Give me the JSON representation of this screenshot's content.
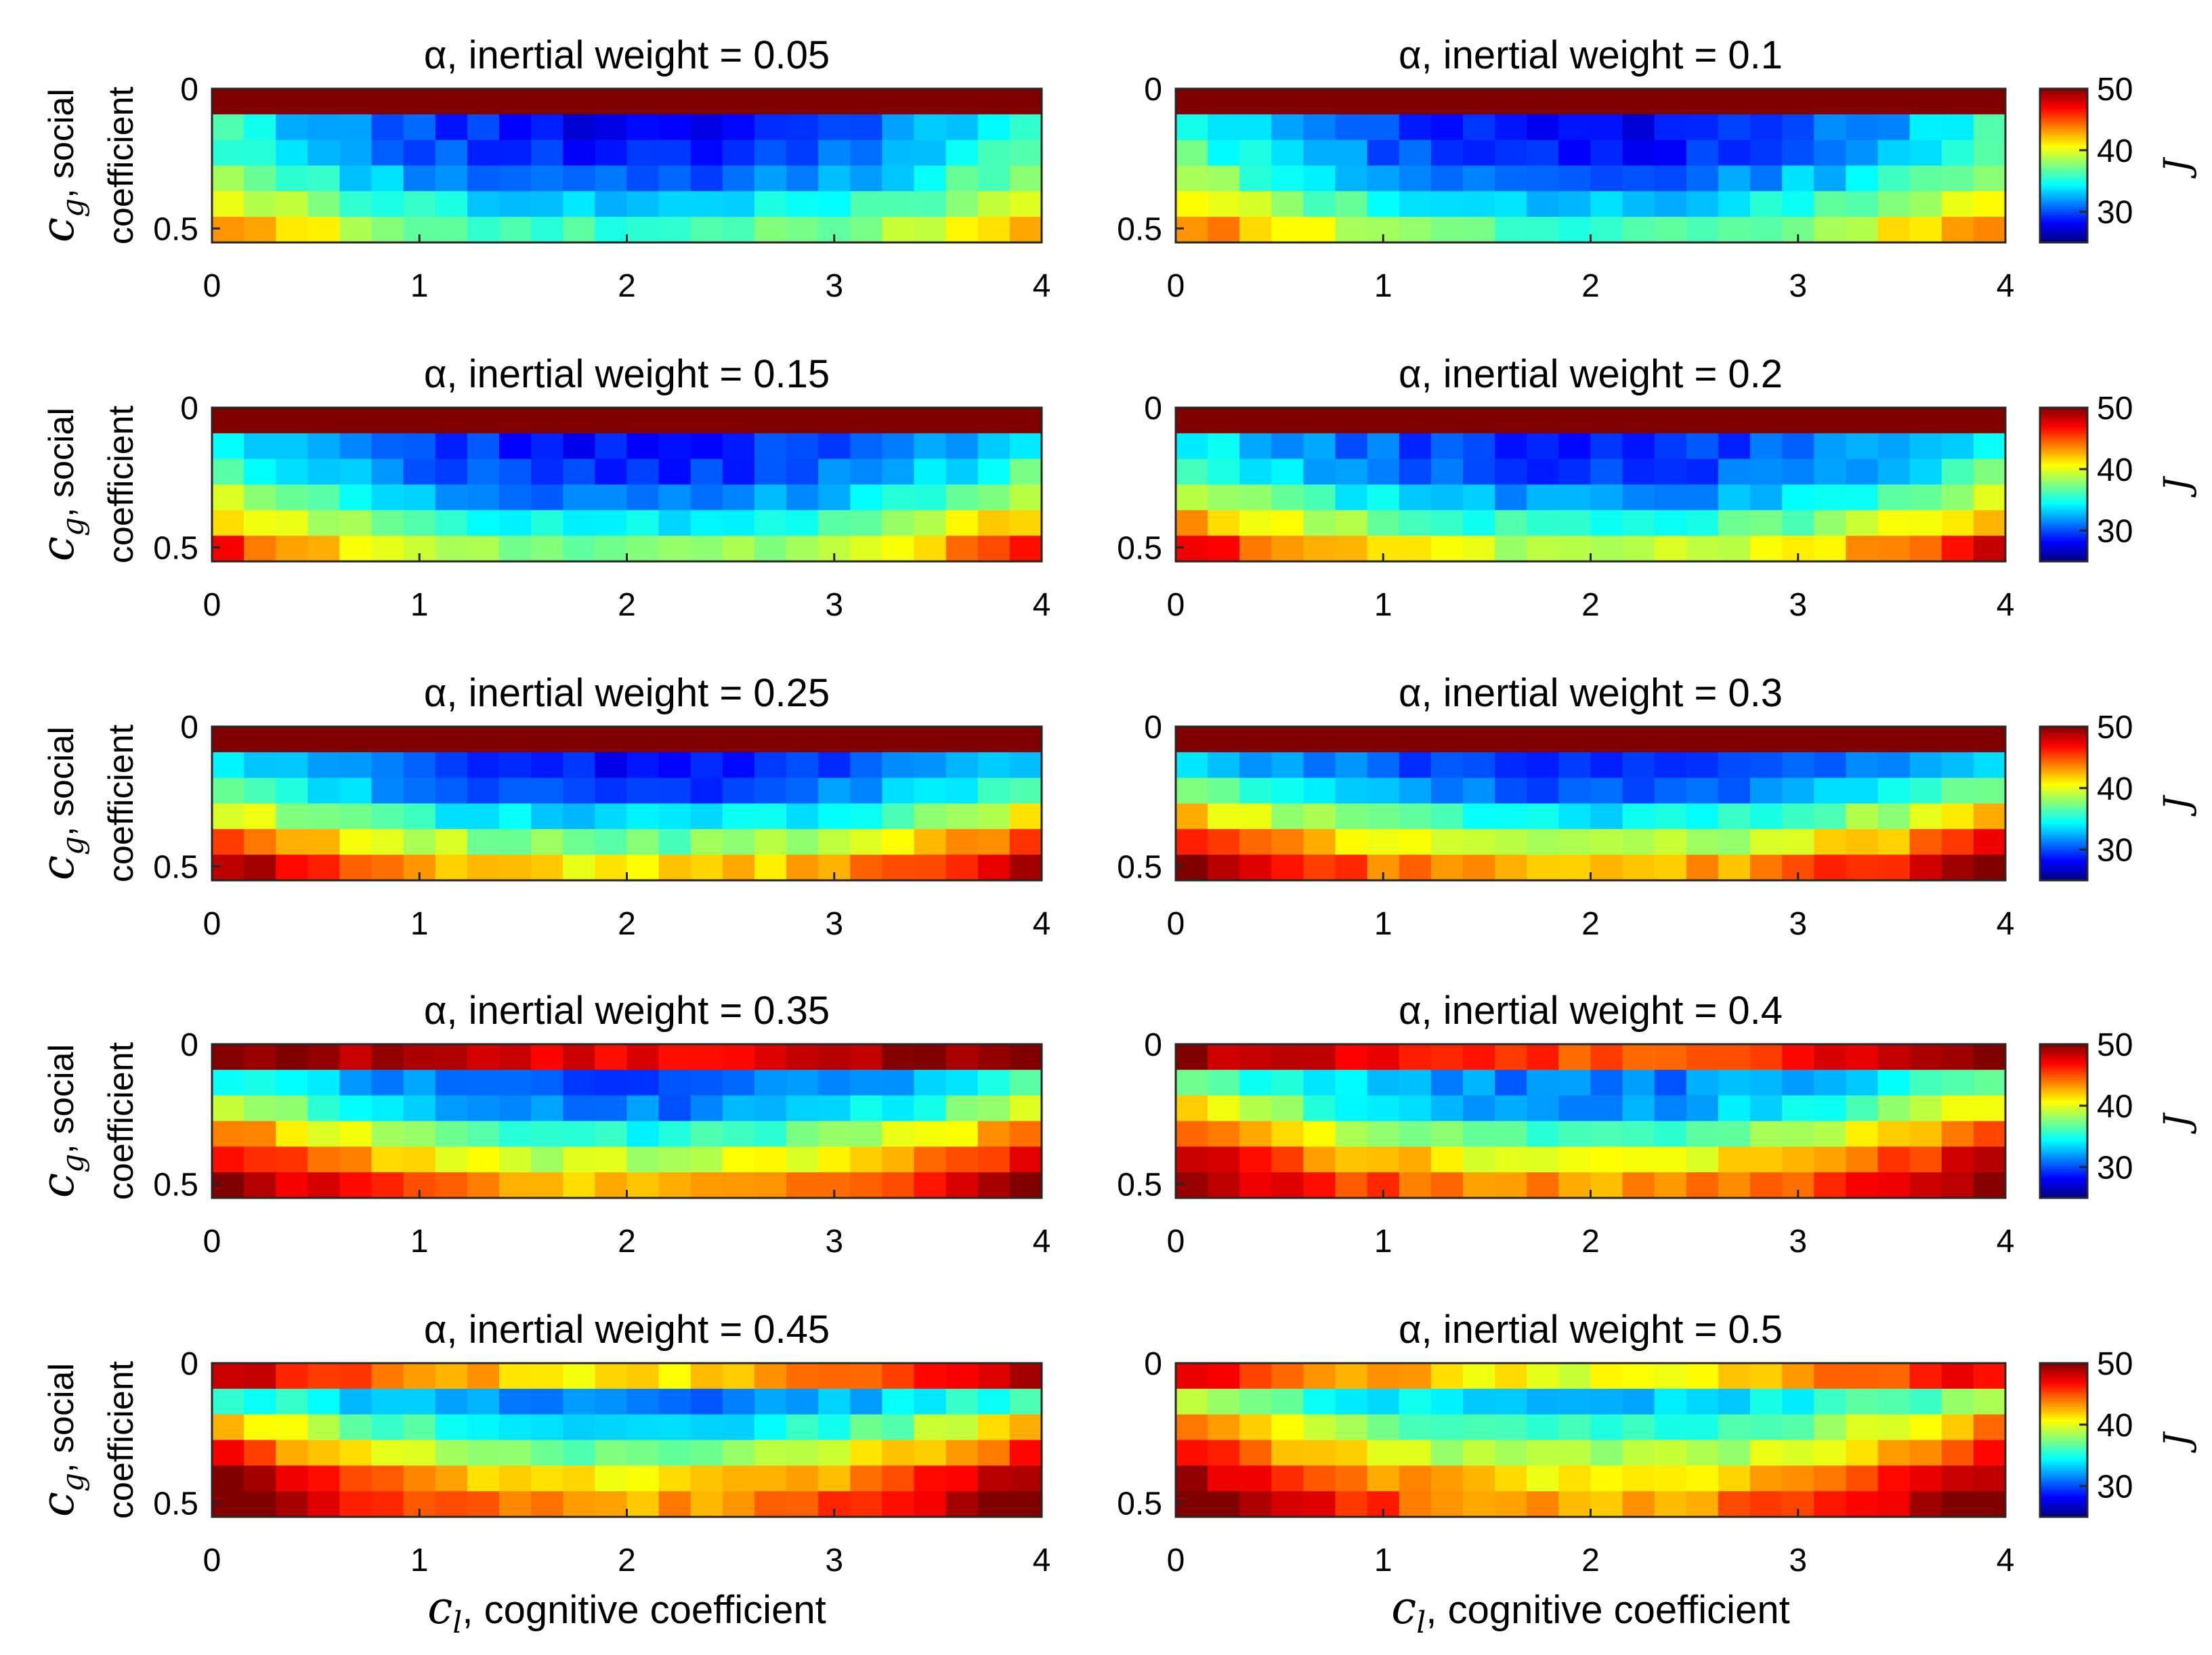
{
  "chart_data": {
    "type": "heatmap",
    "figure_grid": "5 rows x 2 columns",
    "panel_title_prefix": "α, inertial weight = ",
    "x_axis": {
      "label_symbol": "c",
      "label_subscript": "l",
      "label_text": ", cognitive coefficient",
      "range": [
        0,
        4
      ],
      "ticks": [
        0,
        1,
        2,
        3,
        4
      ],
      "tick_labels": [
        "0",
        "1",
        "2",
        "3",
        "4"
      ],
      "columns": 26
    },
    "y_axis": {
      "label_symbol": "c",
      "label_subscript": "g",
      "label_text_line1": ", social",
      "label_text_line2": "coefficient",
      "range": [
        0,
        0.55
      ],
      "direction": "top-to-bottom",
      "ticks": [
        0,
        0.5
      ],
      "tick_labels": [
        "0",
        "0.5"
      ],
      "rows": 6
    },
    "colorbar": {
      "label": "J",
      "range": [
        25,
        50
      ],
      "ticks": [
        30,
        40,
        50
      ],
      "tick_labels": [
        "30",
        "40",
        "50"
      ],
      "colormap": "jet"
    },
    "panels": [
      {
        "alpha": "0.05",
        "rows": [
          {
            "center": 52,
            "edge": 52,
            "exp": 1
          },
          {
            "center": 28,
            "edge": 36,
            "exp": 2
          },
          {
            "center": 28.5,
            "edge": 37,
            "exp": 2
          },
          {
            "center": 30,
            "edge": 39,
            "exp": 2
          },
          {
            "center": 33,
            "edge": 41,
            "exp": 2
          },
          {
            "center": 35.5,
            "edge": 44,
            "exp": 2
          }
        ]
      },
      {
        "alpha": "0.1",
        "rows": [
          {
            "center": 52,
            "edge": 52,
            "exp": 1
          },
          {
            "center": 28,
            "edge": 36,
            "exp": 2
          },
          {
            "center": 28.5,
            "edge": 37,
            "exp": 2
          },
          {
            "center": 30.5,
            "edge": 39,
            "exp": 2
          },
          {
            "center": 33,
            "edge": 42,
            "exp": 2
          },
          {
            "center": 36,
            "edge": 45,
            "exp": 2
          }
        ]
      },
      {
        "alpha": "0.15",
        "rows": [
          {
            "center": 52,
            "edge": 52,
            "exp": 1
          },
          {
            "center": 28.5,
            "edge": 35,
            "exp": 2
          },
          {
            "center": 29,
            "edge": 37,
            "exp": 2
          },
          {
            "center": 31,
            "edge": 39.5,
            "exp": 2
          },
          {
            "center": 34,
            "edge": 43,
            "exp": 2
          },
          {
            "center": 37,
            "edge": 47,
            "exp": 2
          }
        ]
      },
      {
        "alpha": "0.2",
        "rows": [
          {
            "center": 52,
            "edge": 52,
            "exp": 1
          },
          {
            "center": 29,
            "edge": 35,
            "exp": 2
          },
          {
            "center": 29.5,
            "edge": 37,
            "exp": 2
          },
          {
            "center": 31.5,
            "edge": 40,
            "exp": 2
          },
          {
            "center": 35,
            "edge": 44,
            "exp": 2
          },
          {
            "center": 38.5,
            "edge": 48,
            "exp": 2
          }
        ]
      },
      {
        "alpha": "0.25",
        "rows": [
          {
            "center": 52,
            "edge": 52,
            "exp": 1
          },
          {
            "center": 28.5,
            "edge": 34,
            "exp": 2
          },
          {
            "center": 29.5,
            "edge": 37,
            "exp": 2
          },
          {
            "center": 33,
            "edge": 41,
            "exp": 2
          },
          {
            "center": 37,
            "edge": 46,
            "exp": 2
          },
          {
            "center": 41,
            "edge": 50,
            "exp": 2
          }
        ]
      },
      {
        "alpha": "0.3",
        "rows": [
          {
            "center": 52,
            "edge": 52,
            "exp": 1
          },
          {
            "center": 29,
            "edge": 34,
            "exp": 2
          },
          {
            "center": 30,
            "edge": 38,
            "exp": 2
          },
          {
            "center": 34,
            "edge": 43,
            "exp": 2
          },
          {
            "center": 38,
            "edge": 47,
            "exp": 2
          },
          {
            "center": 42,
            "edge": 51,
            "exp": 2
          }
        ]
      },
      {
        "alpha": "0.35",
        "rows": [
          {
            "center": 47,
            "edge": 51,
            "exp": 1.5
          },
          {
            "center": 30,
            "edge": 36,
            "exp": 2
          },
          {
            "center": 31,
            "edge": 40,
            "exp": 2
          },
          {
            "center": 35,
            "edge": 45,
            "exp": 2
          },
          {
            "center": 39,
            "edge": 48,
            "exp": 2
          },
          {
            "center": 42,
            "edge": 51,
            "exp": 2
          }
        ]
      },
      {
        "alpha": "0.4",
        "rows": [
          {
            "center": 45,
            "edge": 50,
            "exp": 1.5
          },
          {
            "center": 31,
            "edge": 38,
            "exp": 2
          },
          {
            "center": 32,
            "edge": 42,
            "exp": 2
          },
          {
            "center": 36,
            "edge": 46,
            "exp": 2
          },
          {
            "center": 40,
            "edge": 49,
            "exp": 2
          },
          {
            "center": 43,
            "edge": 51,
            "exp": 2
          }
        ]
      },
      {
        "alpha": "0.45",
        "rows": [
          {
            "center": 41,
            "edge": 49,
            "exp": 1.5
          },
          {
            "center": 31,
            "edge": 37,
            "exp": 2
          },
          {
            "center": 33,
            "edge": 43,
            "exp": 2
          },
          {
            "center": 37,
            "edge": 47,
            "exp": 2
          },
          {
            "center": 41,
            "edge": 50,
            "exp": 2
          },
          {
            "center": 43,
            "edge": 52,
            "exp": 2
          }
        ]
      },
      {
        "alpha": "0.5",
        "rows": [
          {
            "center": 40,
            "edge": 48,
            "exp": 1.5
          },
          {
            "center": 33,
            "edge": 39,
            "exp": 2
          },
          {
            "center": 35,
            "edge": 44,
            "exp": 2
          },
          {
            "center": 38,
            "edge": 47,
            "exp": 2
          },
          {
            "center": 41,
            "edge": 50,
            "exp": 2
          },
          {
            "center": 43,
            "edge": 52,
            "exp": 2
          }
        ]
      }
    ]
  }
}
